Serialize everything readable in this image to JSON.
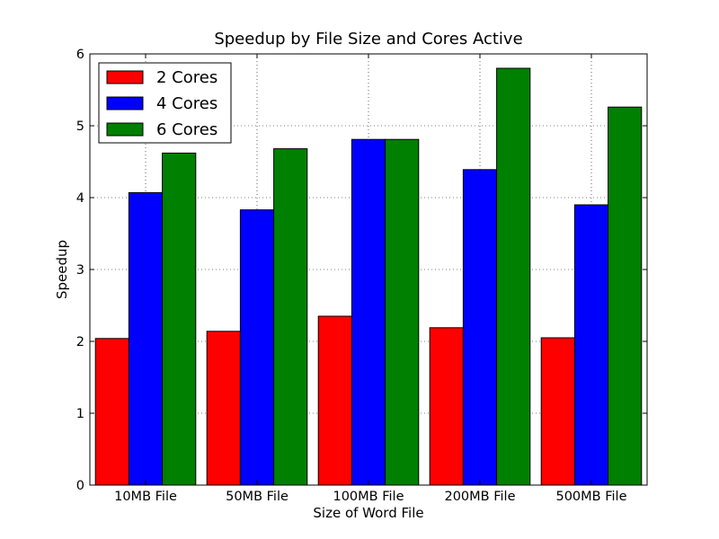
{
  "chart_data": {
    "type": "bar",
    "title": "Speedup by File Size and Cores Active",
    "xlabel": "Size of Word File",
    "ylabel": "Speedup",
    "categories": [
      "10MB File",
      "50MB File",
      "100MB File",
      "200MB File",
      "500MB File"
    ],
    "series": [
      {
        "name": "2 Cores",
        "color": "#ff0000",
        "values": [
          2.04,
          2.14,
          2.35,
          2.19,
          2.05
        ]
      },
      {
        "name": "4 Cores",
        "color": "#0000ff",
        "values": [
          4.07,
          3.83,
          4.81,
          4.39,
          3.9
        ]
      },
      {
        "name": "6 Cores",
        "color": "#008000",
        "values": [
          4.62,
          4.68,
          4.81,
          5.8,
          5.26
        ]
      }
    ],
    "ylim": [
      0,
      6
    ],
    "yticks": [
      "0",
      "1",
      "2",
      "3",
      "4",
      "5",
      "6"
    ],
    "grid": true,
    "legend_position": "top-left"
  }
}
